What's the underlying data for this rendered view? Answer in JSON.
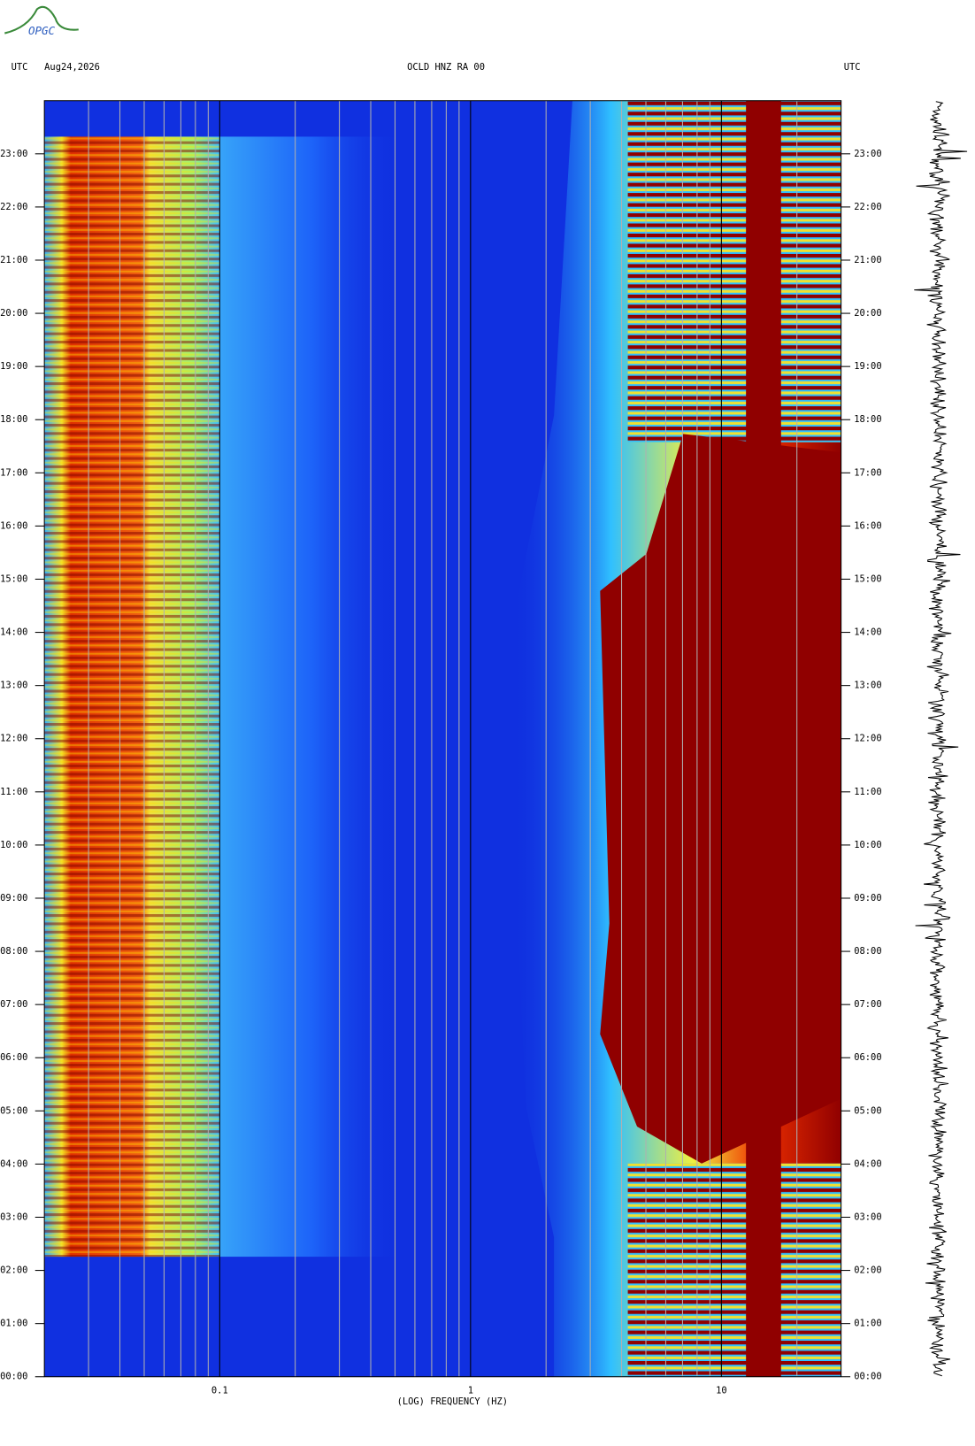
{
  "header": {
    "logo": "OPGC",
    "left_label": "UTC",
    "date": "Aug24,2026",
    "station": "OCLD HNZ RA 00",
    "right_label": "UTC"
  },
  "chart_data": {
    "type": "spectrogram",
    "xlabel": "(LOG) FREQUENCY (HZ)",
    "xscale": "log",
    "xlim": [
      0.02,
      30
    ],
    "xticks": [
      0.1,
      1,
      10
    ],
    "x_gridlines": [
      0.03,
      0.04,
      0.05,
      0.06,
      0.07,
      0.08,
      0.09,
      0.2,
      0.3,
      0.4,
      0.5,
      0.6,
      0.7,
      0.8,
      0.9,
      2,
      3,
      4,
      5,
      6,
      7,
      8,
      9,
      20
    ],
    "ylim": [
      0,
      24
    ],
    "yticks": [
      {
        "value": 0,
        "label": "00:00"
      },
      {
        "value": 1,
        "label": "01:00"
      },
      {
        "value": 2,
        "label": "02:00"
      },
      {
        "value": 3,
        "label": "03:00"
      },
      {
        "value": 4,
        "label": "04:00"
      },
      {
        "value": 5,
        "label": "05:00"
      },
      {
        "value": 6,
        "label": "06:00"
      },
      {
        "value": 7,
        "label": "07:00"
      },
      {
        "value": 8,
        "label": "08:00"
      },
      {
        "value": 9,
        "label": "09:00"
      },
      {
        "value": 10,
        "label": "10:00"
      },
      {
        "value": 11,
        "label": "11:00"
      },
      {
        "value": 12,
        "label": "12:00"
      },
      {
        "value": 13,
        "label": "13:00"
      },
      {
        "value": 14,
        "label": "14:00"
      },
      {
        "value": 15,
        "label": "15:00"
      },
      {
        "value": 16,
        "label": "16:00"
      },
      {
        "value": 17,
        "label": "17:00"
      },
      {
        "value": 18,
        "label": "18:00"
      },
      {
        "value": 19,
        "label": "19:00"
      },
      {
        "value": 20,
        "label": "20:00"
      },
      {
        "value": 21,
        "label": "21:00"
      },
      {
        "value": 22,
        "label": "22:00"
      },
      {
        "value": 23,
        "label": "23:00"
      }
    ]
  }
}
